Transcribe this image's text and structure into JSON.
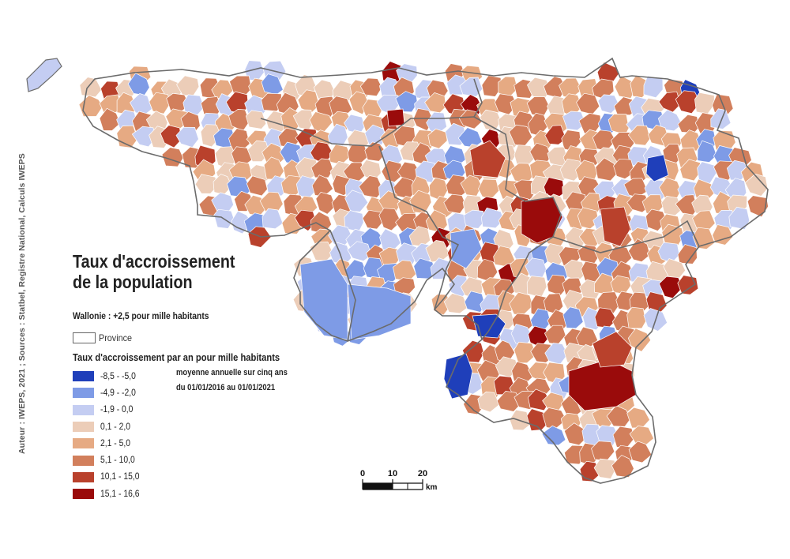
{
  "credits": "Auteur : IWEPS, 2021 ; Sources : Statbel, Registre National, Calculs IWEPS",
  "title": "Taux d'accroissement de la population",
  "region_stat": "Wallonie : +2,5 pour mille habitants",
  "province_label": "Province",
  "legend": {
    "title": "Taux d'accroissement par an pour mille habitants",
    "note_line1": "moyenne annuelle sur cinq ans",
    "note_line2": "du 01/01/2016 au 01/01/2021",
    "classes": [
      {
        "label": "-8,5 - -5,0",
        "color": "#1f3fba"
      },
      {
        "label": "-4,9 - -2,0",
        "color": "#7e9be6"
      },
      {
        "label": "-1,9 - 0,0",
        "color": "#c4cdf2"
      },
      {
        "label": "0,1 - 2,0",
        "color": "#eccdb8"
      },
      {
        "label": "2,1 - 5,0",
        "color": "#e6aa83"
      },
      {
        "label": "5,1 - 10,0",
        "color": "#d27f5c"
      },
      {
        "label": "10,1 - 15,0",
        "color": "#b9412c"
      },
      {
        "label": "15,1 - 16,6",
        "color": "#9a0b0b"
      }
    ]
  },
  "scale_bar": {
    "ticks": [
      "0",
      "10",
      "20"
    ],
    "unit": "km"
  }
}
